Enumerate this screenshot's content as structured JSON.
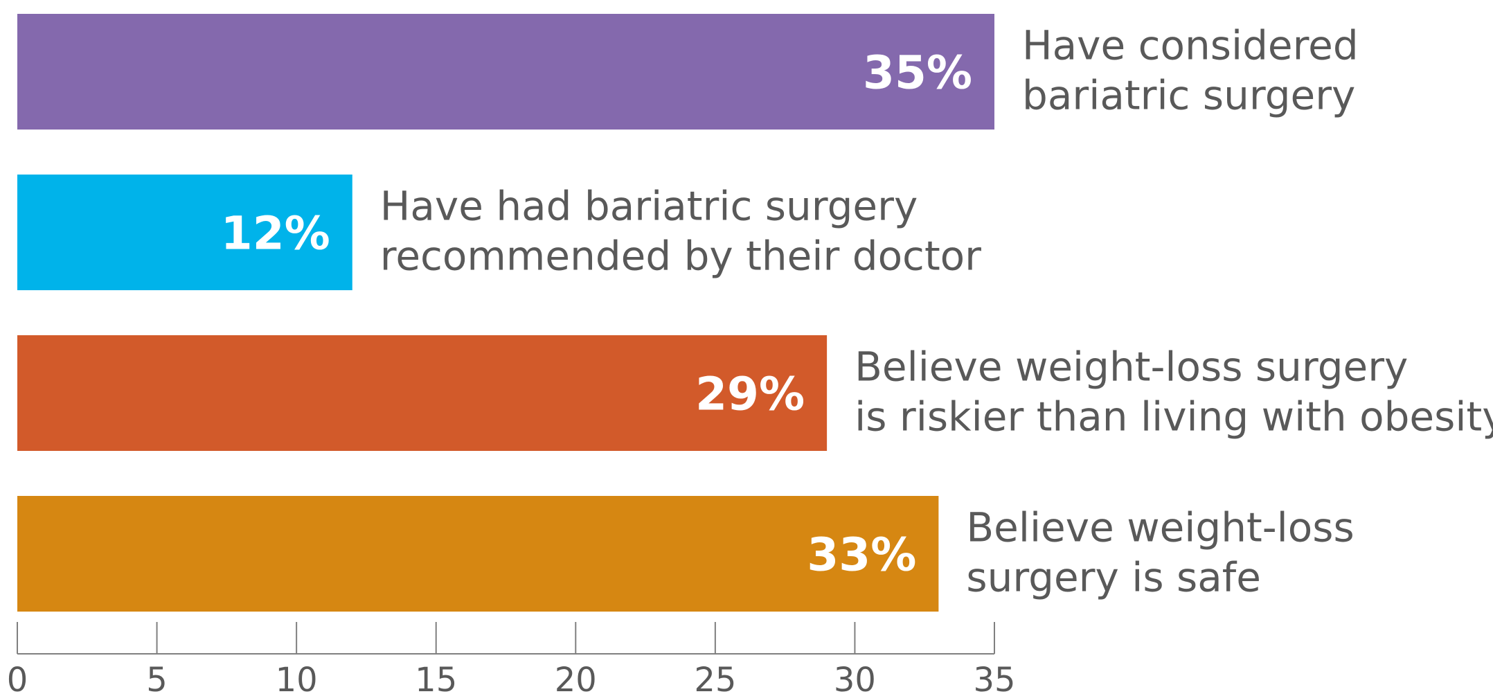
{
  "chart_data": {
    "type": "bar",
    "orientation": "horizontal",
    "title": "",
    "xlabel": "",
    "ylabel": "",
    "xlim": [
      0,
      35
    ],
    "x_ticks": [
      "0",
      "5",
      "10",
      "15",
      "20",
      "25",
      "30",
      "35"
    ],
    "grid": false,
    "legend": "none",
    "categories": [
      [
        "Have considered",
        "bariatric surgery"
      ],
      [
        "Have had bariatric surgery",
        "recommended by their doctor"
      ],
      [
        "Believe weight-loss surgery",
        "is riskier than living with obesity"
      ],
      [
        "Believe weight-loss",
        "surgery is safe"
      ]
    ],
    "values": [
      35,
      12,
      29,
      33
    ],
    "value_labels": [
      "35%",
      "12%",
      "29%",
      "33%"
    ],
    "colors": [
      "#8469ad",
      "#00b3ea",
      "#d25a2a",
      "#d68712"
    ],
    "axis_color": "#7f7f7f",
    "label_color": "#595959",
    "value_label_color": "#ffffff"
  }
}
